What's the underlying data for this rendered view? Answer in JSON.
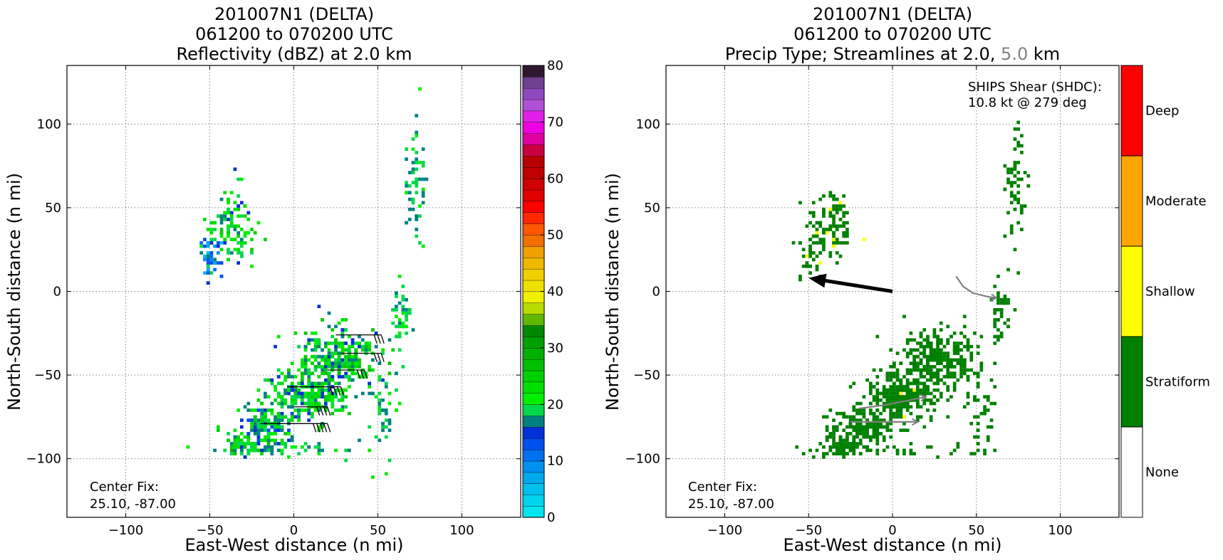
{
  "colors": {
    "stratiform": "#008000",
    "shallow": "#ffff00",
    "moderate": "#ffa500",
    "deep": "#ff0000",
    "streamline": "#808080",
    "shear_arrow": "#000000"
  },
  "chart_data": [
    {
      "type": "heatmap",
      "title": [
        "201007N1 (DELTA)",
        "061200 to 070200 UTC",
        "Reflectivity (dBZ) at 2.0 km"
      ],
      "xlabel": "East-West distance (n mi)",
      "ylabel": "North-South distance (n mi)",
      "xlim": [
        -135,
        135
      ],
      "ylim": [
        -135,
        135
      ],
      "xticks": [
        -100,
        -50,
        0,
        50,
        100
      ],
      "yticks": [
        -100,
        -50,
        0,
        50,
        100
      ],
      "xtick_labels": [
        "−100",
        "−50",
        "0",
        "50",
        "100"
      ],
      "ytick_labels": [
        "−100",
        "−50",
        "0",
        "50",
        "100"
      ],
      "grid": true,
      "annotations": {
        "center_fix_label": "Center Fix:",
        "center_fix_value": "25.10, -87.00"
      },
      "colorbar": {
        "min": 0,
        "max": 80,
        "step": 2.5,
        "tick_values": [
          0,
          10,
          20,
          30,
          40,
          50,
          60,
          70,
          80
        ],
        "tick_labels": [
          "0",
          "10",
          "20",
          "30",
          "40",
          "50",
          "60",
          "70",
          "80"
        ],
        "colors": [
          "#00e5ee",
          "#00d4ee",
          "#00c0ee",
          "#00a8ee",
          "#0090ee",
          "#0070ee",
          "#0050ee",
          "#0030d8",
          "#008080",
          "#00d84a",
          "#00ee00",
          "#00e000",
          "#00d000",
          "#00c000",
          "#00b000",
          "#00a000",
          "#008800",
          "#60b800",
          "#b8dc00",
          "#f0f000",
          "#f0e000",
          "#f0d000",
          "#f0b800",
          "#f0a000",
          "#f07000",
          "#ff5800",
          "#ff2800",
          "#ff0000",
          "#e00000",
          "#d00000",
          "#c00000",
          "#b80000",
          "#c80040",
          "#e000a0",
          "#f000e0",
          "#e020e8",
          "#b050d8",
          "#9048c0",
          "#704090",
          "#301830"
        ]
      },
      "clusters": [
        {
          "x": -38,
          "y": 40,
          "sx": 7,
          "sy": 12,
          "n": 110,
          "z": [
            18,
            32
          ]
        },
        {
          "x": -50,
          "y": 22,
          "sx": 4,
          "sy": 8,
          "n": 40,
          "z": [
            5,
            26
          ]
        },
        {
          "x": 25,
          "y": -40,
          "sx": 12,
          "sy": 9,
          "n": 320,
          "z": [
            18,
            34
          ]
        },
        {
          "x": 5,
          "y": -62,
          "sx": 12,
          "sy": 7,
          "n": 260,
          "z": [
            18,
            33
          ]
        },
        {
          "x": -18,
          "y": -80,
          "sx": 10,
          "sy": 6,
          "n": 170,
          "z": [
            15,
            32
          ]
        },
        {
          "x": -30,
          "y": -92,
          "sx": 6,
          "sy": 3,
          "n": 60,
          "z": [
            18,
            38
          ]
        },
        {
          "x": 72,
          "y": 65,
          "sx": 3,
          "sy": 18,
          "n": 60,
          "z": [
            20,
            26
          ]
        },
        {
          "x": 63,
          "y": -10,
          "sx": 3,
          "sy": 10,
          "n": 40,
          "z": [
            20,
            26
          ]
        },
        {
          "x": 52,
          "y": -70,
          "sx": 5,
          "sy": 15,
          "n": 50,
          "z": [
            20,
            26
          ]
        },
        {
          "x": -5,
          "y": -94,
          "sx": 25,
          "sy": 2,
          "n": 40,
          "z": [
            20,
            26
          ]
        }
      ],
      "wind_barbs": [
        {
          "y": -26,
          "x0": 25,
          "x1": 52,
          "n": 3
        },
        {
          "y": -37,
          "x0": 28,
          "x1": 52,
          "n": 3
        },
        {
          "y": -47,
          "x0": 20,
          "x1": 42,
          "n": 3
        },
        {
          "y": -57,
          "x0": -4,
          "x1": 28,
          "n": 4
        },
        {
          "y": -69,
          "x0": 0,
          "x1": 20,
          "n": 4
        },
        {
          "y": -79,
          "x0": -20,
          "x1": 20,
          "n": 5
        }
      ]
    },
    {
      "type": "heatmap",
      "title_lines": [
        "201007N1 (DELTA)",
        "061200 to 070200 UTC"
      ],
      "title_prefix": "Precip Type; Streamlines at 2.0,",
      "title_highlight": "5.0",
      "title_suffix": "km",
      "xlabel": "East-West distance (n mi)",
      "ylabel": "North-South distance (n mi)",
      "xlim": [
        -135,
        135
      ],
      "ylim": [
        -135,
        135
      ],
      "xticks": [
        -100,
        -50,
        0,
        50,
        100
      ],
      "yticks": [
        -100,
        -50,
        0,
        50,
        100
      ],
      "xtick_labels": [
        "−100",
        "−50",
        "0",
        "50",
        "100"
      ],
      "ytick_labels": [
        "−100",
        "−50",
        "0",
        "50",
        "100"
      ],
      "grid": true,
      "annotations": {
        "shear_label": "SHIPS Shear (SHDC):",
        "shear_value": "10.8 kt @ 279 deg",
        "center_fix_label": "Center Fix:",
        "center_fix_value": "25.10, -87.00"
      },
      "shear_vector": {
        "from": [
          0,
          0
        ],
        "to": [
          -50,
          8
        ]
      },
      "streamlines": [
        [
          [
            38,
            9
          ],
          [
            42,
            3
          ],
          [
            48,
            -1
          ],
          [
            56,
            -3
          ],
          [
            62,
            -4
          ]
        ],
        [
          [
            -20,
            -70
          ],
          [
            -5,
            -68
          ],
          [
            10,
            -65
          ],
          [
            20,
            -63
          ]
        ],
        [
          [
            -25,
            -78
          ],
          [
            -10,
            -78
          ],
          [
            5,
            -78
          ],
          [
            15,
            -78
          ]
        ]
      ],
      "colorbar": {
        "categories": [
          "None",
          "Stratiform",
          "Shallow",
          "Moderate",
          "Deep"
        ],
        "colors": [
          "#ffffff",
          "#008000",
          "#ffff00",
          "#ffa500",
          "#ff0000"
        ]
      },
      "clusters": [
        {
          "x": -38,
          "y": 40,
          "sx": 7,
          "sy": 12,
          "n": 110,
          "yellow": 0.12
        },
        {
          "x": -50,
          "y": 22,
          "sx": 4,
          "sy": 8,
          "n": 30,
          "yellow": 0.15
        },
        {
          "x": 25,
          "y": -40,
          "sx": 12,
          "sy": 9,
          "n": 320,
          "yellow": 0.0
        },
        {
          "x": 5,
          "y": -62,
          "sx": 12,
          "sy": 7,
          "n": 260,
          "yellow": 0.02
        },
        {
          "x": -18,
          "y": -80,
          "sx": 10,
          "sy": 6,
          "n": 170,
          "yellow": 0.01
        },
        {
          "x": -30,
          "y": -92,
          "sx": 6,
          "sy": 3,
          "n": 60,
          "yellow": 0.0
        },
        {
          "x": 72,
          "y": 65,
          "sx": 3,
          "sy": 18,
          "n": 60,
          "yellow": 0.0
        },
        {
          "x": 63,
          "y": -10,
          "sx": 3,
          "sy": 10,
          "n": 40,
          "yellow": 0.0
        },
        {
          "x": 52,
          "y": -70,
          "sx": 5,
          "sy": 15,
          "n": 50,
          "yellow": 0.0
        },
        {
          "x": -5,
          "y": -94,
          "sx": 25,
          "sy": 2,
          "n": 40,
          "yellow": 0.0
        }
      ]
    }
  ]
}
